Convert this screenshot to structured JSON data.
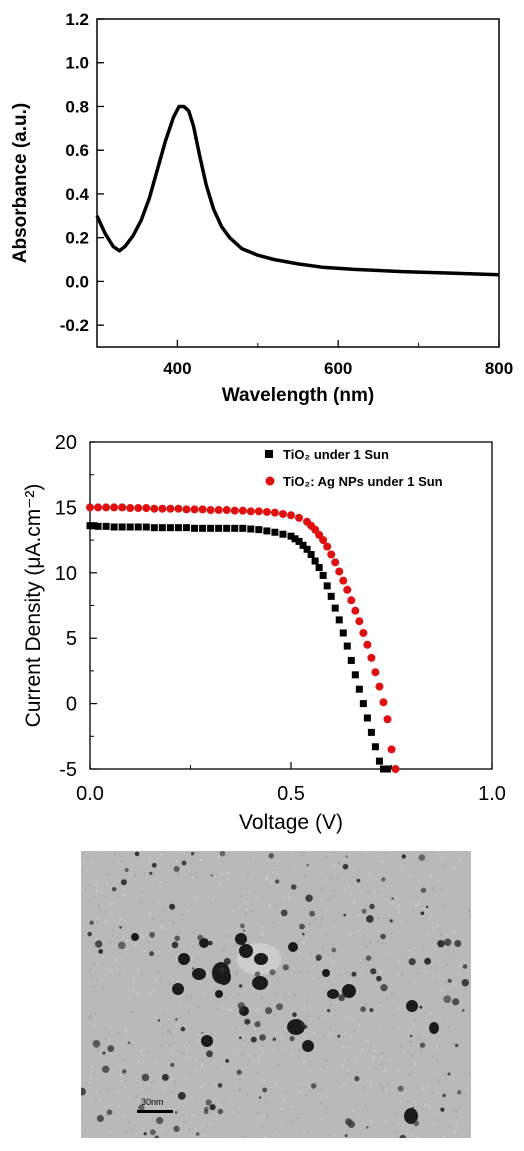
{
  "chart_data": [
    {
      "type": "line",
      "xlabel": "Wavelength (nm)",
      "ylabel": "Absorbance (a.u.)",
      "xlim": [
        300,
        800
      ],
      "ylim": [
        -0.3,
        1.2
      ],
      "xticks": [
        400,
        600,
        800
      ],
      "yticks": [
        -0.2,
        0.0,
        0.2,
        0.4,
        0.6,
        0.8,
        1.0,
        1.2
      ],
      "xtick_labels": [
        "400",
        "600",
        "800"
      ],
      "ytick_labels": [
        "-0.2",
        "0.0",
        "0.2",
        "0.4",
        "0.6",
        "0.8",
        "1.0",
        "1.2"
      ],
      "series": [
        {
          "x": [
            300,
            310,
            320,
            328,
            335,
            345,
            355,
            365,
            375,
            385,
            395,
            402,
            408,
            414,
            420,
            428,
            436,
            445,
            455,
            465,
            480,
            500,
            520,
            550,
            580,
            620,
            680,
            740,
            800
          ],
          "values": [
            0.3,
            0.22,
            0.16,
            0.14,
            0.16,
            0.21,
            0.28,
            0.38,
            0.51,
            0.64,
            0.75,
            0.8,
            0.8,
            0.78,
            0.71,
            0.57,
            0.44,
            0.33,
            0.25,
            0.2,
            0.15,
            0.12,
            0.1,
            0.08,
            0.065,
            0.055,
            0.045,
            0.038,
            0.03
          ],
          "color": "#000000"
        }
      ]
    },
    {
      "type": "scatter",
      "xlabel": "Voltage (V)",
      "ylabel": "Current Density (μA.cm⁻²)",
      "xlim": [
        0.0,
        1.0
      ],
      "ylim": [
        -5,
        20
      ],
      "xticks": [
        0.0,
        0.5,
        1.0
      ],
      "yticks": [
        -5,
        0,
        5,
        10,
        15,
        20
      ],
      "xtick_labels": [
        "0.0",
        "0.5",
        "1.0"
      ],
      "ytick_labels": [
        "-5",
        "0",
        "5",
        "10",
        "15",
        "20"
      ],
      "legend_position": "top-right",
      "series": [
        {
          "name": "TiO₂ under 1 Sun",
          "marker": "square",
          "color": "#000000",
          "x": [
            0.0,
            0.01,
            0.02,
            0.04,
            0.06,
            0.08,
            0.1,
            0.12,
            0.14,
            0.16,
            0.18,
            0.2,
            0.22,
            0.24,
            0.26,
            0.28,
            0.3,
            0.32,
            0.34,
            0.36,
            0.38,
            0.4,
            0.42,
            0.44,
            0.46,
            0.48,
            0.5,
            0.51,
            0.52,
            0.53,
            0.54,
            0.55,
            0.56,
            0.57,
            0.58,
            0.59,
            0.6,
            0.61,
            0.62,
            0.63,
            0.64,
            0.65,
            0.66,
            0.67,
            0.68,
            0.69,
            0.7,
            0.71,
            0.72,
            0.73,
            0.74
          ],
          "values": [
            13.6,
            13.6,
            13.55,
            13.55,
            13.5,
            13.5,
            13.5,
            13.5,
            13.5,
            13.45,
            13.45,
            13.45,
            13.45,
            13.45,
            13.4,
            13.4,
            13.4,
            13.4,
            13.4,
            13.4,
            13.4,
            13.35,
            13.3,
            13.2,
            13.1,
            12.95,
            12.8,
            12.6,
            12.4,
            12.1,
            11.8,
            11.4,
            10.9,
            10.4,
            9.8,
            9.0,
            8.2,
            7.3,
            6.4,
            5.4,
            4.4,
            3.3,
            2.2,
            1.1,
            0.0,
            -1.1,
            -2.2,
            -3.3,
            -4.4,
            -5.0,
            -5.0
          ]
        },
        {
          "name": "TiO₂: Ag NPs under 1 Sun",
          "marker": "circle",
          "color": "#e01010",
          "x": [
            0.0,
            0.02,
            0.04,
            0.06,
            0.08,
            0.1,
            0.12,
            0.14,
            0.16,
            0.18,
            0.2,
            0.22,
            0.24,
            0.26,
            0.28,
            0.3,
            0.32,
            0.34,
            0.36,
            0.38,
            0.4,
            0.42,
            0.44,
            0.46,
            0.48,
            0.5,
            0.52,
            0.54,
            0.55,
            0.56,
            0.57,
            0.58,
            0.59,
            0.6,
            0.61,
            0.62,
            0.63,
            0.64,
            0.65,
            0.66,
            0.67,
            0.68,
            0.69,
            0.7,
            0.71,
            0.72,
            0.73,
            0.74,
            0.75,
            0.76
          ],
          "values": [
            15.0,
            15.0,
            15.0,
            15.0,
            15.0,
            14.95,
            14.95,
            14.95,
            14.9,
            14.9,
            14.9,
            14.9,
            14.85,
            14.85,
            14.85,
            14.8,
            14.8,
            14.8,
            14.75,
            14.75,
            14.7,
            14.7,
            14.65,
            14.6,
            14.5,
            14.4,
            14.2,
            13.9,
            13.6,
            13.3,
            12.9,
            12.5,
            12.0,
            11.4,
            10.8,
            10.1,
            9.4,
            8.7,
            7.9,
            7.1,
            6.3,
            5.4,
            4.5,
            3.5,
            2.4,
            1.3,
            0.1,
            -1.2,
            -3.5,
            -5.0
          ]
        }
      ]
    }
  ],
  "micrograph": {
    "scale_label": "30nm"
  }
}
